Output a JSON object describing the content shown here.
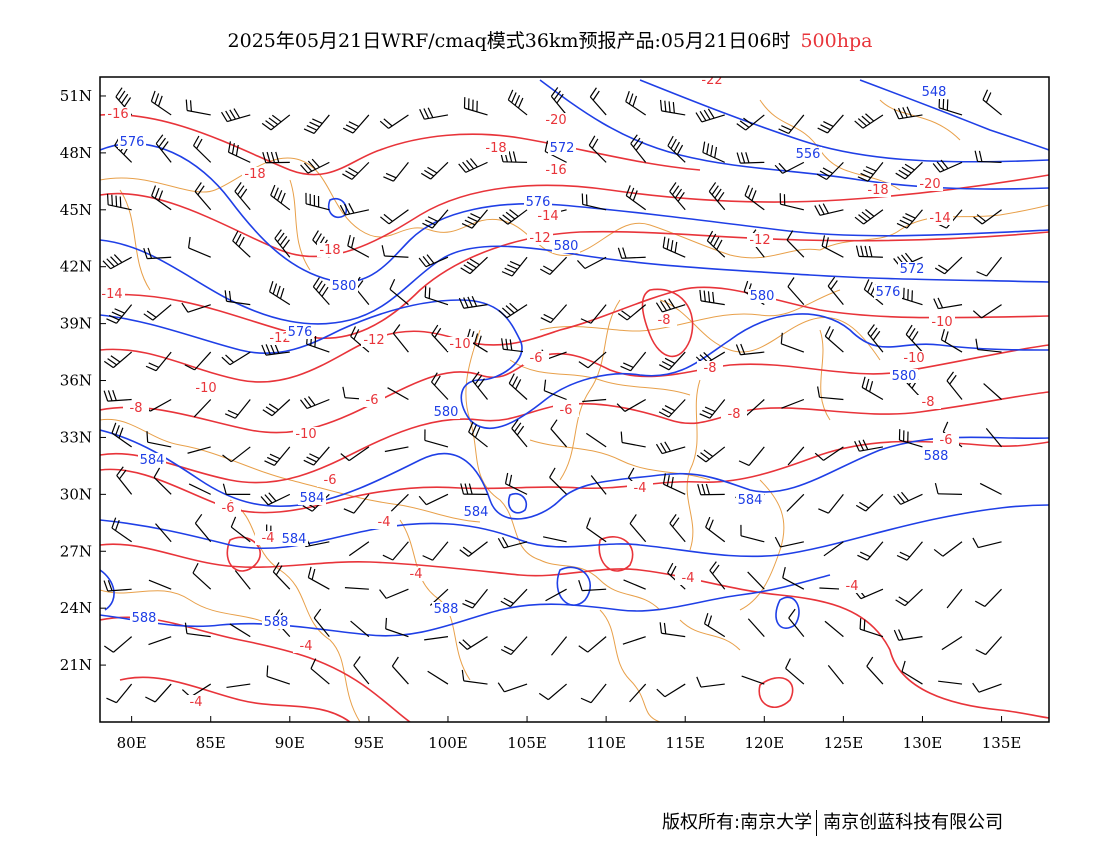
{
  "title": {
    "main": "2025年05月21日WRF/cmaq模式36km预报产品:05月21日06时",
    "level": "500hpa"
  },
  "axes": {
    "lon_ticks": [
      "80E",
      "85E",
      "90E",
      "95E",
      "100E",
      "105E",
      "110E",
      "115E",
      "120E",
      "125E",
      "130E",
      "135E"
    ],
    "lat_ticks": [
      "51N",
      "48N",
      "45N",
      "42N",
      "39N",
      "36N",
      "33N",
      "30N",
      "27N",
      "24N",
      "21N"
    ]
  },
  "chart_data": {
    "type": "contour-map",
    "xlim": [
      78,
      138
    ],
    "ylim": [
      18,
      52
    ],
    "height_contours": {
      "color": "#1f3fe6",
      "labels": [
        "576",
        "572",
        "556",
        "548",
        "576",
        "580",
        "576",
        "580",
        "572",
        "576",
        "580",
        "580",
        "580",
        "584",
        "584",
        "584",
        "584",
        "584",
        "588",
        "588",
        "588",
        "588"
      ]
    },
    "temperature_contours": {
      "color": "#e8343a",
      "labels": [
        "-16",
        "-18",
        "-20",
        "-16",
        "-18",
        "-22",
        "-20",
        "-18",
        "-14",
        "-14",
        "-12",
        "-12",
        "-18",
        "-14",
        "-12",
        "-8",
        "-10",
        "-12",
        "-10",
        "-8",
        "-10",
        "-10",
        "-6",
        "-6",
        "-8",
        "-6",
        "-10",
        "-8",
        "-8",
        "-4",
        "-6",
        "-6",
        "-4",
        "-4",
        "-4",
        "-4",
        "-6",
        "-4",
        "-4",
        "-4"
      ]
    },
    "wind_barbs": {
      "color": "#000000",
      "grid_spacing_deg": 5
    }
  },
  "footer": {
    "copyright": "版权所有:南京大学",
    "company": "南京创蓝科技有限公司"
  }
}
